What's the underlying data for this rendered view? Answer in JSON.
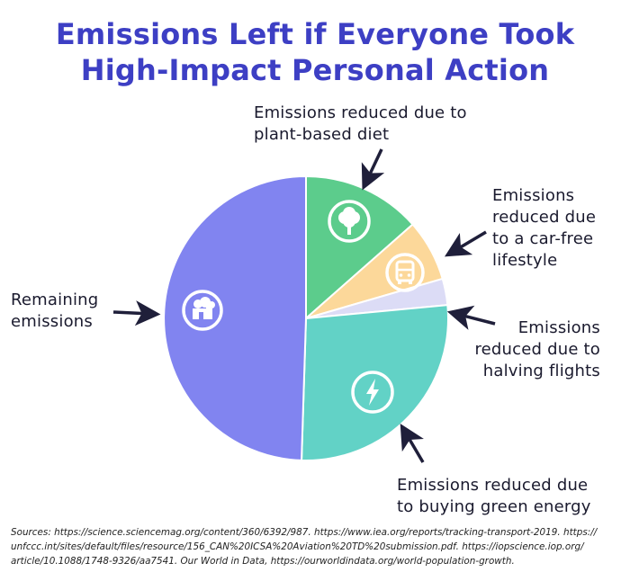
{
  "title": {
    "line1": "Emissions Left if Everyone Took",
    "line2": "High-Impact Personal Action"
  },
  "colors": {
    "title": "#3d3fc4",
    "remaining": "#8184f0",
    "plant_based": "#5ccc8c",
    "car_free": "#fcd89a",
    "flights": "#dcdcf6",
    "green_energy": "#62d2c6",
    "arrow": "#1f1f3a"
  },
  "chart_data": {
    "type": "pie",
    "slices": [
      {
        "label": "Emissions reduced due to plant-based diet",
        "value": 13.5,
        "color": "#5ccc8c",
        "icon": "tree-icon"
      },
      {
        "label": "Emissions reduced due to a car-free lifestyle",
        "value": 7.0,
        "color": "#fcd89a",
        "icon": "bus-icon"
      },
      {
        "label": "Emissions reduced due to halving flights",
        "value": 3.0,
        "color": "#dcdcf6",
        "icon": ""
      },
      {
        "label": "Emissions reduced due to buying green energy",
        "value": 27.0,
        "color": "#62d2c6",
        "icon": "lightning-bolt-icon"
      },
      {
        "label": "Remaining emissions",
        "value": 49.5,
        "color": "#8184f0",
        "icon": "factory-icon"
      }
    ]
  },
  "labels": {
    "plant_based": [
      "Emissions reduced due to",
      "plant-based diet"
    ],
    "car_free": [
      "Emissions",
      "reduced due",
      "to a car-free",
      "lifestyle"
    ],
    "flights": [
      "Emissions",
      "reduced due to",
      "halving flights"
    ],
    "green_energy": [
      "Emissions reduced due",
      "to buying green energy"
    ],
    "remaining": [
      "Remaining",
      "emissions"
    ]
  },
  "sources": {
    "line1": "Sources: https://science.sciencemag.org/content/360/6392/987. https://www.iea.org/reports/tracking-transport-2019. https://",
    "line2": "unfccc.int/sites/default/files/resource/156_CAN%20ICSA%20Aviation%20TD%20submission.pdf. https://iopscience.iop.org/",
    "line3": "article/10.1088/1748-9326/aa7541. Our World in Data, https://ourworldindata.org/world-population-growth."
  }
}
